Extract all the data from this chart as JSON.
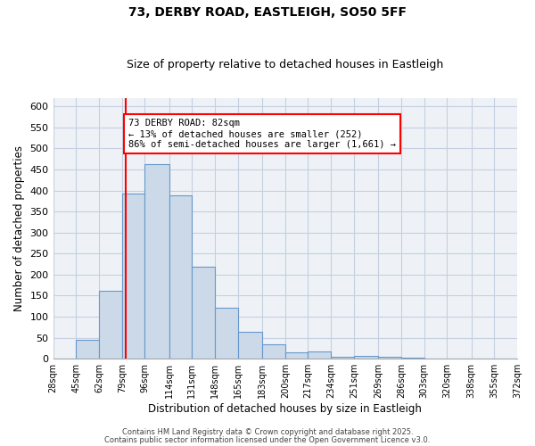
{
  "title1": "73, DERBY ROAD, EASTLEIGH, SO50 5FF",
  "title2": "Size of property relative to detached houses in Eastleigh",
  "xlabel": "Distribution of detached houses by size in Eastleigh",
  "ylabel": "Number of detached properties",
  "bin_labels": [
    "28sqm",
    "45sqm",
    "62sqm",
    "79sqm",
    "96sqm",
    "114sqm",
    "131sqm",
    "148sqm",
    "165sqm",
    "183sqm",
    "200sqm",
    "217sqm",
    "234sqm",
    "251sqm",
    "269sqm",
    "286sqm",
    "303sqm",
    "320sqm",
    "338sqm",
    "355sqm",
    "372sqm"
  ],
  "bin_edges": [
    28,
    45,
    62,
    79,
    96,
    114,
    131,
    148,
    165,
    183,
    200,
    217,
    234,
    251,
    269,
    286,
    303,
    320,
    338,
    355,
    372
  ],
  "bar_heights": [
    0,
    44,
    161,
    393,
    462,
    389,
    219,
    122,
    63,
    35,
    15,
    18,
    5,
    6,
    4,
    2,
    1,
    0,
    0,
    0
  ],
  "bar_color": "#ccd9e8",
  "bar_edge_color": "#6699cc",
  "vline_x": 82,
  "vline_color": "red",
  "annotation_title": "73 DERBY ROAD: 82sqm",
  "annotation_line1": "← 13% of detached houses are smaller (252)",
  "annotation_line2": "86% of semi-detached houses are larger (1,661) →",
  "annotation_box_color": "white",
  "annotation_box_edge": "red",
  "ylim": [
    0,
    620
  ],
  "yticks": [
    0,
    50,
    100,
    150,
    200,
    250,
    300,
    350,
    400,
    450,
    500,
    550,
    600
  ],
  "footer1": "Contains HM Land Registry data © Crown copyright and database right 2025.",
  "footer2": "Contains public sector information licensed under the Open Government Licence v3.0.",
  "background_color": "#eef2f7",
  "grid_color": "#c5cfe0"
}
